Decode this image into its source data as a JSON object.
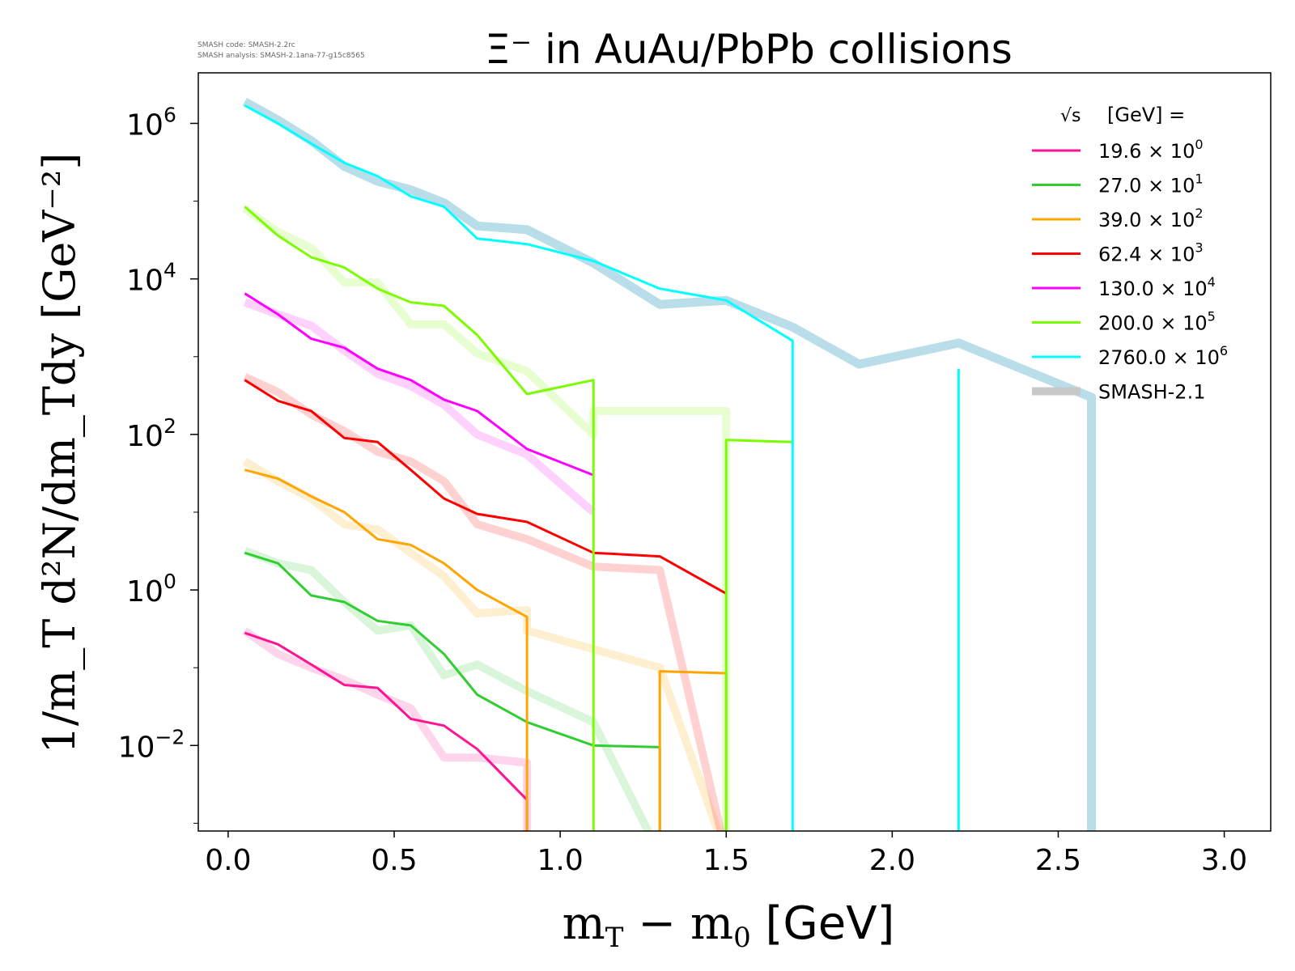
{
  "chart_data": {
    "type": "line",
    "title": "Ξ⁻ in AuAu/PbPb collisions",
    "version_note": {
      "line1": "SMASH code:      SMASH-2.2rc",
      "line2": "SMASH analysis: SMASH-2.1ana-77-g15c8565"
    },
    "xlabel": {
      "main": "m",
      "sub1": "T",
      "mid": " − m",
      "sub2": "0",
      "unit": " [GeV]"
    },
    "ylabel": {
      "text": "1/m_T d²N/dm_Tdy [GeV⁻²]"
    },
    "xlim": [
      -0.09,
      3.14
    ],
    "ylim_log10": [
      -3.1,
      6.65
    ],
    "y_scale": "log",
    "x_ticks": [
      0.0,
      0.5,
      1.0,
      1.5,
      2.0,
      2.5,
      3.0
    ],
    "x_tick_labels": [
      "0.0",
      "0.5",
      "1.0",
      "1.5",
      "2.0",
      "2.5",
      "3.0"
    ],
    "y_ticks": [
      {
        "exp": 6,
        "base": "10",
        "sup": "6"
      },
      {
        "exp": 4,
        "base": "10",
        "sup": "4"
      },
      {
        "exp": 2,
        "base": "10",
        "sup": "2"
      },
      {
        "exp": 0,
        "base": "10",
        "sup": "0"
      },
      {
        "exp": -2,
        "base": "10",
        "sup": "−2"
      }
    ],
    "legend": {
      "position": "top-right",
      "title": "[GeV] =",
      "title_sqrt": "√s",
      "entries": [
        {
          "base": "19.6 × 10",
          "sup": "0",
          "color": "#ff1493"
        },
        {
          "base": "27.0 × 10",
          "sup": "1",
          "color": "#32cd32"
        },
        {
          "base": "39.0 × 10",
          "sup": "2",
          "color": "#ffa500"
        },
        {
          "base": "62.4 × 10",
          "sup": "3",
          "color": "#ff0000"
        },
        {
          "base": "130.0 × 10",
          "sup": "4",
          "color": "#ff00ff"
        },
        {
          "base": "200.0 × 10",
          "sup": "5",
          "color": "#7cfc00"
        },
        {
          "base": "2760.0 × 10",
          "sup": "6",
          "color": "#00ffff"
        },
        {
          "base": "SMASH-2.1",
          "sup": "",
          "color": "#c8c8c8"
        }
      ]
    },
    "series": [
      {
        "name": "19.6 × 10⁰",
        "color": "#ff1493",
        "x": [
          0.05,
          0.15,
          0.25,
          0.35,
          0.45,
          0.55,
          0.65,
          0.75,
          0.9,
          0.9
        ],
        "y": [
          0.28,
          0.2,
          0.11,
          0.06,
          0.055,
          0.022,
          0.018,
          0.009,
          0.002,
          0.0001
        ],
        "smash_y": [
          0.3,
          0.15,
          0.1,
          0.07,
          0.045,
          0.03,
          0.007,
          0.007,
          0.006,
          0.0001
        ]
      },
      {
        "name": "27.0 × 10¹",
        "color": "#32cd32",
        "x": [
          0.05,
          0.15,
          0.25,
          0.35,
          0.45,
          0.55,
          0.65,
          0.75,
          0.9,
          1.1,
          1.3,
          1.3
        ],
        "y": [
          3.0,
          2.2,
          0.85,
          0.7,
          0.4,
          0.35,
          0.15,
          0.045,
          0.02,
          0.01,
          0.0095,
          0.0001
        ],
        "smash_y": [
          3.2,
          2.2,
          1.8,
          0.7,
          0.3,
          0.35,
          0.08,
          0.11,
          0.05,
          0.02,
          0.0001,
          0.0001
        ]
      },
      {
        "name": "39.0 × 10²",
        "color": "#ffa500",
        "x": [
          0.05,
          0.15,
          0.25,
          0.35,
          0.45,
          0.55,
          0.65,
          0.75,
          0.9,
          0.9,
          1.3,
          1.3,
          1.5,
          1.5
        ],
        "y": [
          35,
          27,
          16,
          10,
          4.5,
          3.8,
          2.2,
          1.0,
          0.45,
          0.0001,
          0.0001,
          0.09,
          0.085,
          0.0001
        ],
        "smash_y": [
          45,
          25,
          15,
          7,
          6,
          3.0,
          1.5,
          0.5,
          0.55,
          0.3,
          0.1,
          0.1,
          0.0001,
          0.0001
        ]
      },
      {
        "name": "62.4 × 10³",
        "color": "#ff0000",
        "x": [
          0.05,
          0.15,
          0.25,
          0.35,
          0.45,
          0.55,
          0.65,
          0.75,
          0.9,
          1.1,
          1.3,
          1.5
        ],
        "y": [
          500,
          270,
          200,
          90,
          80,
          35,
          15,
          9.5,
          7.5,
          3.0,
          2.7,
          0.9
        ],
        "smash_y": [
          550,
          350,
          180,
          110,
          60,
          45,
          25,
          7,
          4.5,
          2.0,
          1.8,
          0.0001
        ]
      },
      {
        "name": "130.0 × 10⁴",
        "color": "#ff00ff",
        "x": [
          0.05,
          0.15,
          0.25,
          0.35,
          0.45,
          0.55,
          0.65,
          0.75,
          0.9,
          1.1
        ],
        "y": [
          6500,
          3500,
          1700,
          1300,
          700,
          500,
          280,
          200,
          65,
          30
        ],
        "smash_y": [
          5000,
          3500,
          2500,
          1200,
          600,
          420,
          240,
          100,
          55,
          10
        ]
      },
      {
        "name": "200.0 × 10⁵",
        "color": "#7cfc00",
        "x": [
          0.05,
          0.15,
          0.25,
          0.35,
          0.45,
          0.55,
          0.65,
          0.75,
          0.9,
          1.1,
          1.1,
          1.5,
          1.5,
          1.7
        ],
        "y": [
          85000,
          36000,
          19000,
          14000,
          7500,
          5000,
          4500,
          1900,
          330,
          500,
          0.0001,
          0.0001,
          85,
          80
        ],
        "smash_y": [
          80000,
          40000,
          25000,
          9000,
          9000,
          2600,
          2600,
          1100,
          650,
          100,
          200,
          200,
          0.0001,
          0.0001
        ]
      },
      {
        "name": "2760.0 × 10⁶",
        "color": "#00ffff",
        "x": [
          0.05,
          0.15,
          0.25,
          0.35,
          0.45,
          0.55,
          0.65,
          0.75,
          0.9,
          1.1,
          1.3,
          1.5,
          1.7,
          1.7,
          2.2,
          2.2
        ],
        "y": [
          1700000,
          1000000,
          550000,
          310000,
          210000,
          115000,
          85000,
          33000,
          28000,
          17000,
          7500,
          5300,
          1600,
          0.0001,
          0.0001,
          700
        ],
        "smash_x": [
          0.05,
          0.15,
          0.25,
          0.35,
          0.45,
          0.55,
          0.65,
          0.75,
          0.9,
          1.1,
          1.3,
          1.5,
          1.7,
          1.9,
          2.2,
          2.6,
          2.6
        ],
        "smash_y": [
          1900000,
          1100000,
          600000,
          280000,
          180000,
          140000,
          95000,
          48000,
          43000,
          16000,
          4700,
          5300,
          2400,
          800,
          1500,
          300,
          0.0001
        ]
      }
    ]
  }
}
